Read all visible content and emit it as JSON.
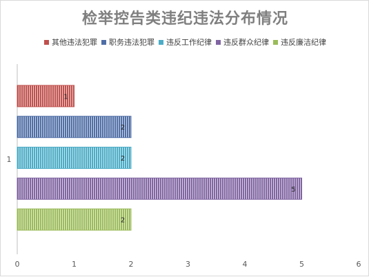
{
  "chart_data": {
    "type": "bar",
    "orientation": "horizontal",
    "title": "检举控告类违纪违法分布情况",
    "categories": [
      "1"
    ],
    "series": [
      {
        "name": "其他违法犯罪",
        "values": [
          1
        ],
        "color": "#c0504d"
      },
      {
        "name": "职务违法犯罪",
        "values": [
          2
        ],
        "color": "#4f6ea6"
      },
      {
        "name": "违反工作纪律",
        "values": [
          2
        ],
        "color": "#4bacc6"
      },
      {
        "name": "违反群众纪律",
        "values": [
          5
        ],
        "color": "#8064a2"
      },
      {
        "name": "违反廉洁纪律",
        "values": [
          2
        ],
        "color": "#9bbb59"
      }
    ],
    "xlim": [
      0,
      6
    ],
    "xticks": [
      "0",
      "1",
      "2",
      "3",
      "4",
      "5",
      "6"
    ],
    "grid": false,
    "legend_position": "top"
  }
}
